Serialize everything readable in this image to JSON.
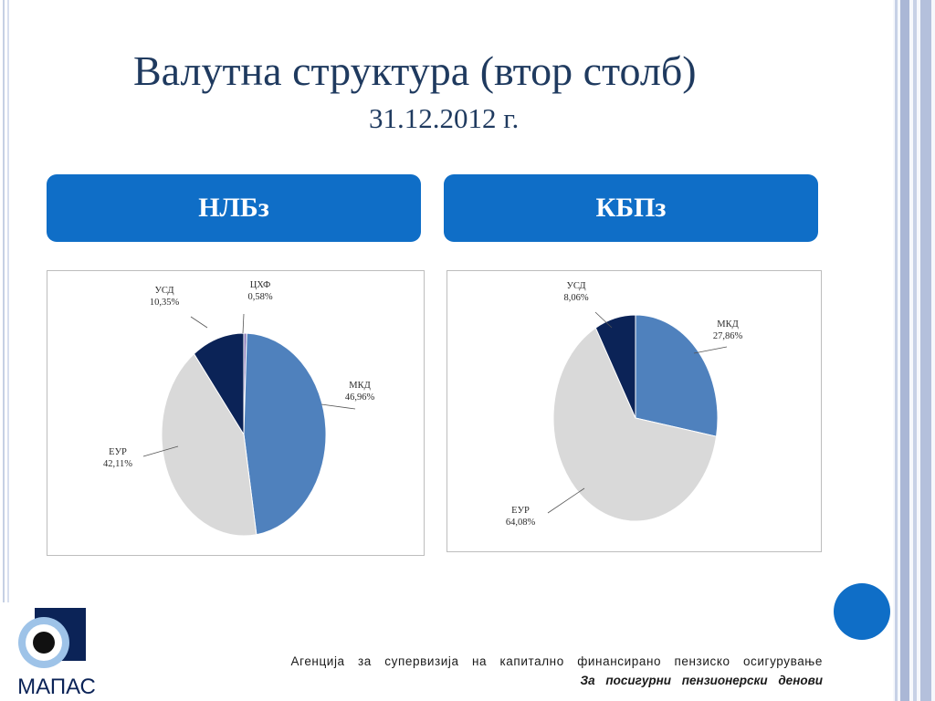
{
  "slide": {
    "title": "Валутна структура (втор столб)",
    "subtitle": "31.12.2012 г."
  },
  "tabs": [
    {
      "label": "НЛБз"
    },
    {
      "label": "КБПз"
    }
  ],
  "footer": {
    "agency": "Агенција за супервизија на капитално финансирано пензиско осигурување",
    "slogan": "За посигурни пензионерски денови"
  },
  "logo": {
    "text": "МАПАС"
  },
  "colors": {
    "tab": "#0f6ec7",
    "title": "#1f3a5f"
  },
  "chart_data": [
    {
      "type": "pie",
      "slices": [
        {
          "label": "ЦХФ",
          "value_label": "0,58%",
          "value": 0.58,
          "color": "#8a7ab8"
        },
        {
          "label": "МКД",
          "value_label": "46,96%",
          "value": 46.96,
          "color": "#4f81bd"
        },
        {
          "label": "ЕУР",
          "value_label": "42,11%",
          "value": 42.11,
          "color": "#d9d9d9"
        },
        {
          "label": "УСД",
          "value_label": "10,35%",
          "value": 10.35,
          "color": "#0b2357"
        }
      ]
    },
    {
      "type": "pie",
      "slices": [
        {
          "label": "МКД",
          "value_label": "27,86%",
          "value": 27.86,
          "color": "#4f81bd"
        },
        {
          "label": "ЕУР",
          "value_label": "64,08%",
          "value": 64.08,
          "color": "#d9d9d9"
        },
        {
          "label": "УСД",
          "value_label": "8,06%",
          "value": 8.06,
          "color": "#0b2357"
        }
      ]
    }
  ]
}
